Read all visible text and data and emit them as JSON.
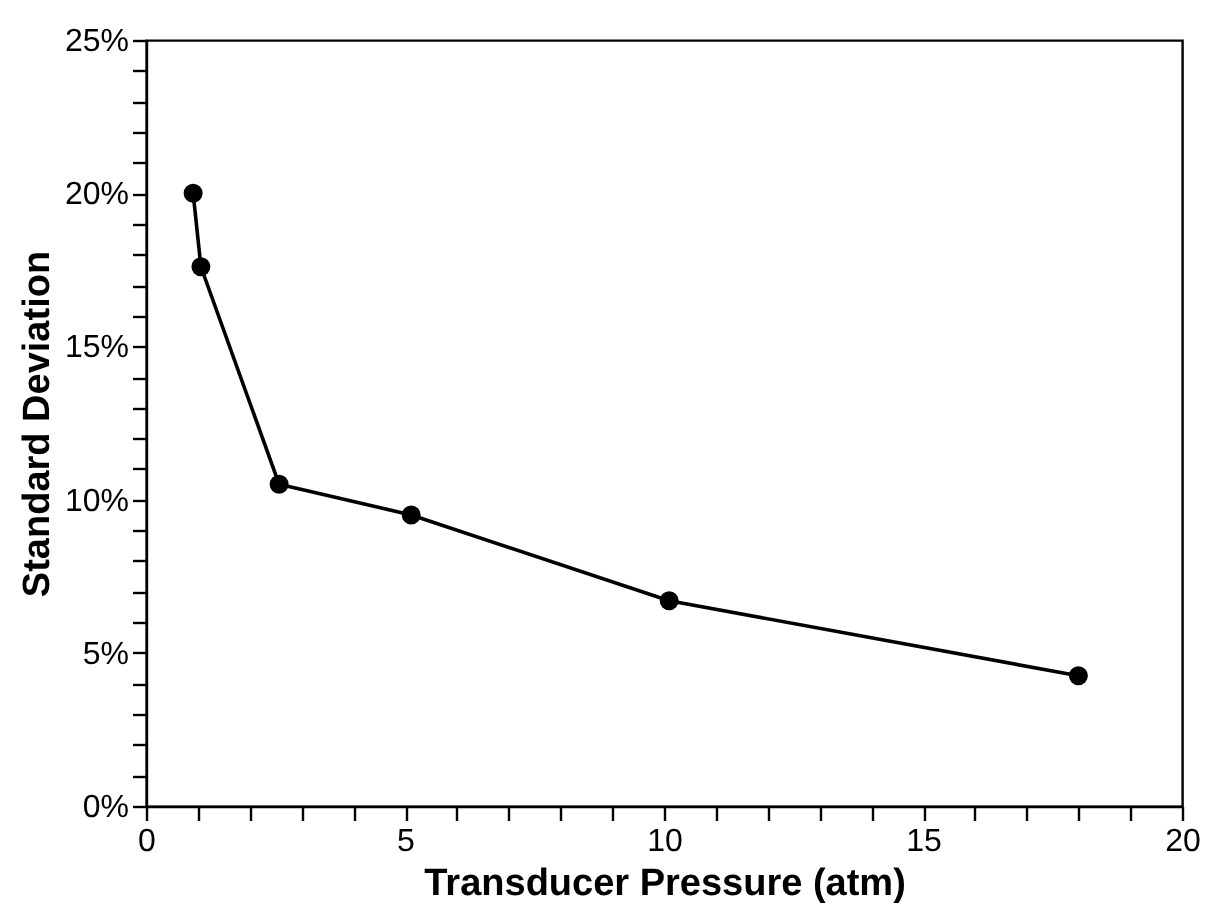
{
  "chart_data": {
    "type": "line",
    "xlabel": "Transducer Pressure (atm)",
    "ylabel": "Standard Deviation",
    "marker": "circle",
    "line_style": "solid",
    "grid": false,
    "x": [
      0.91,
      1.06,
      2.57,
      5.12,
      10.1,
      18.0
    ],
    "series": [
      {
        "color": "#000000",
        "values": [
          20.0,
          17.6,
          10.5,
          9.5,
          6.7,
          4.25
        ]
      }
    ],
    "xlim": [
      0,
      20
    ],
    "xticks": [
      0,
      {
        "value": 1,
        "label": null
      },
      {
        "value": 2,
        "label": null
      },
      {
        "value": 3,
        "label": null
      },
      {
        "value": 4,
        "label": null
      },
      5,
      {
        "value": 6,
        "label": null
      },
      {
        "value": 7,
        "label": null
      },
      {
        "value": 8,
        "label": null
      },
      {
        "value": 9,
        "label": null
      },
      10,
      {
        "value": 11,
        "label": null
      },
      {
        "value": 12,
        "label": null
      },
      {
        "value": 13,
        "label": null
      },
      {
        "value": 14,
        "label": null
      },
      15,
      {
        "value": 16,
        "label": null
      },
      {
        "value": 17,
        "label": null
      },
      {
        "value": 18,
        "label": null
      },
      {
        "value": 19,
        "label": null
      },
      20
    ],
    "ylim": [
      0,
      25
    ],
    "yticks": [
      {
        "value": 0,
        "label": "0%"
      },
      {
        "value": 1,
        "label": null
      },
      {
        "value": 2,
        "label": null
      },
      {
        "value": 3,
        "label": null
      },
      {
        "value": 4,
        "label": null
      },
      {
        "value": 5,
        "label": "5%"
      },
      {
        "value": 6,
        "label": null
      },
      {
        "value": 7,
        "label": null
      },
      {
        "value": 8,
        "label": null
      },
      {
        "value": 9,
        "label": null
      },
      {
        "value": 10,
        "label": "10%"
      },
      {
        "value": 11,
        "label": null
      },
      {
        "value": 12,
        "label": null
      },
      {
        "value": 13,
        "label": null
      },
      {
        "value": 14,
        "label": null
      },
      {
        "value": 15,
        "label": "15%"
      },
      {
        "value": 16,
        "label": null
      },
      {
        "value": 17,
        "label": null
      },
      {
        "value": 18,
        "label": null
      },
      {
        "value": 19,
        "label": null
      },
      {
        "value": 20,
        "label": "20%"
      },
      {
        "value": 21,
        "label": null
      },
      {
        "value": 22,
        "label": null
      },
      {
        "value": 23,
        "label": null
      },
      {
        "value": 24,
        "label": null
      },
      {
        "value": 25,
        "label": "25%"
      }
    ]
  }
}
